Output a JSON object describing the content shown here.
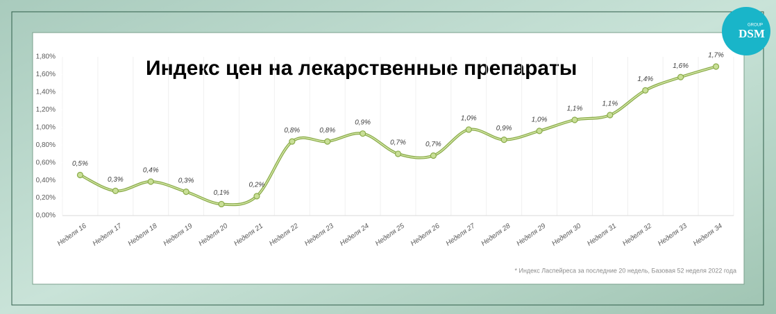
{
  "chart_data": {
    "type": "line",
    "title": "Индекс цен на лекарственные препараты",
    "footnote": "* Индекс Ласпейреса за последние 20 недель, Базовая 52 неделя 2022 года",
    "logo": {
      "text": "DSM",
      "subtext": "GROUP"
    },
    "categories": [
      "Неделя 16",
      "Неделя 17",
      "Неделя 18",
      "Неделя 19",
      "Неделя 20",
      "Неделя 21",
      "Неделя 22",
      "Неделя 23",
      "Неделя 24",
      "Неделя 25",
      "Неделя 26",
      "Неделя 27",
      "Неделя 28",
      "Неделя 29",
      "Неделя 30",
      "Неделя 31",
      "Неделя 32",
      "Неделя 33",
      "Неделя 34"
    ],
    "series": [
      {
        "name": "Индекс цен",
        "color": "#8aab4a",
        "values": [
          0.46,
          0.28,
          0.385,
          0.27,
          0.13,
          0.22,
          0.84,
          0.84,
          0.93,
          0.7,
          0.68,
          0.975,
          0.86,
          0.96,
          1.085,
          1.14,
          1.42,
          1.57,
          1.69
        ],
        "value_labels": [
          "0,5%",
          "0,3%",
          "0,4%",
          "0,3%",
          "0,1%",
          "0,2%",
          "0,8%",
          "0,8%",
          "0,9%",
          "0,7%",
          "0,7%",
          "1,0%",
          "0,9%",
          "1,0%",
          "1,1%",
          "1,1%",
          "1,4%",
          "1,6%",
          "1,7%"
        ]
      }
    ],
    "ylim": [
      0,
      1.8
    ],
    "yticks": [
      {
        "value": 0,
        "label": "0,00%"
      },
      {
        "value": 0.2,
        "label": "0,20%"
      },
      {
        "value": 0.4,
        "label": "0,40%"
      },
      {
        "value": 0.6,
        "label": "0,60%"
      },
      {
        "value": 0.8,
        "label": "0,80%"
      },
      {
        "value": 1,
        "label": "1,00%"
      },
      {
        "value": 1.2,
        "label": "1,20%"
      },
      {
        "value": 1.4,
        "label": "1,40%"
      },
      {
        "value": 1.6,
        "label": "1,60%"
      },
      {
        "value": 1.8,
        "label": "1,80%"
      }
    ]
  }
}
